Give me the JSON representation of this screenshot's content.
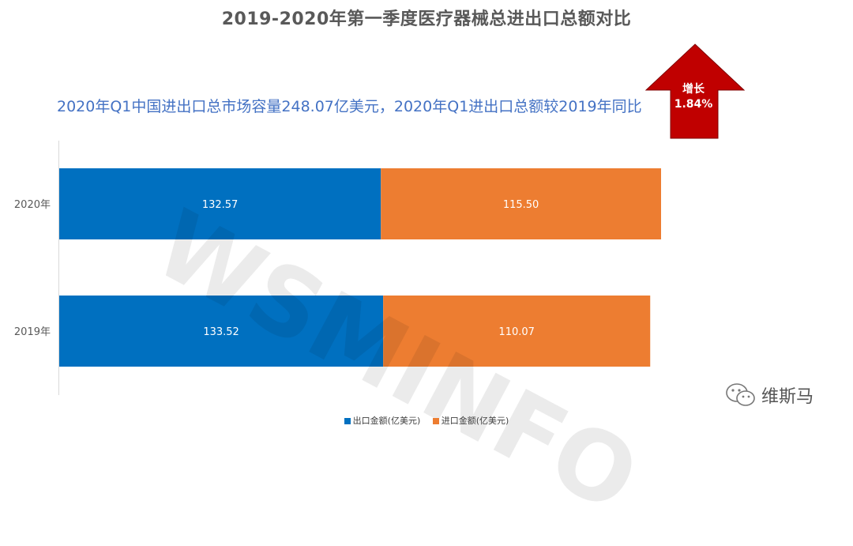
{
  "page": {
    "title": "2019-2020年第一季度医疗器械总进出口总额对比",
    "subtitle": "2020年Q1中国进出口总市场容量248.07亿美元，2020年Q1进出口总额较2019年同比",
    "badge": {
      "line1": "增长",
      "line2": "1.84%"
    },
    "watermark": "WSMINFO",
    "brand": "维斯马"
  },
  "colors": {
    "export": "#0070c0",
    "import": "#ed7d31",
    "arrow": "#c00000",
    "axis": "#d9d9d9"
  },
  "chart_data": {
    "type": "bar",
    "orientation": "horizontal",
    "stacked": true,
    "categories": [
      "2020年",
      "2019年"
    ],
    "series": [
      {
        "name": "出口金额(亿美元)",
        "values": [
          132.57,
          133.52
        ],
        "color": "#0070c0"
      },
      {
        "name": "进口金额(亿美元)",
        "values": [
          115.5,
          110.07
        ],
        "color": "#ed7d31"
      }
    ],
    "data_labels": [
      [
        "132.57",
        "133.52"
      ],
      [
        "115.50",
        "110.07"
      ]
    ],
    "xlim": [
      0,
      248.07
    ],
    "legend": "bottom-center",
    "grid": false
  }
}
